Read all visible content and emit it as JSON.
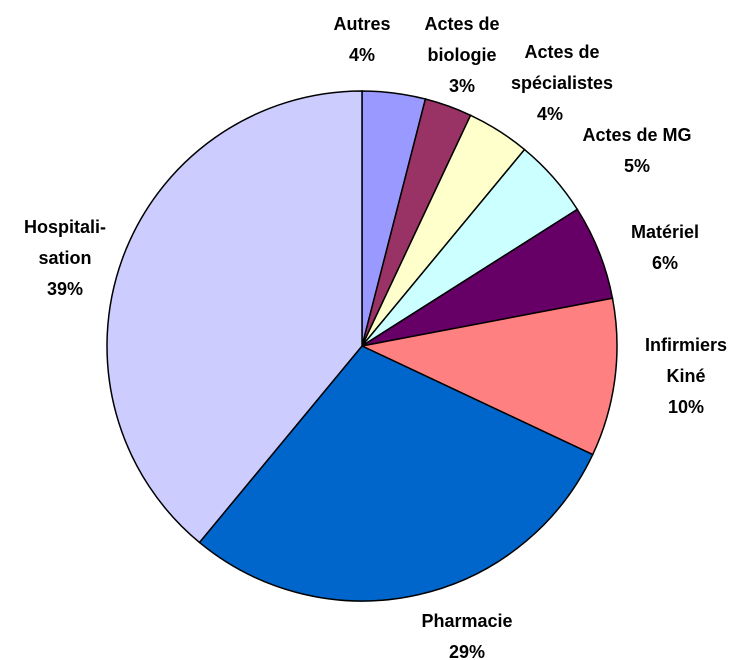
{
  "chart_data": {
    "type": "pie",
    "categories": [
      "Autres",
      "Actes de\nbiologie",
      "Actes de\nspécialistes",
      "Actes de MG",
      "Matériel",
      "Infirmiers\nKiné",
      "Pharmacie",
      "Hospitali-\nsation"
    ],
    "values": [
      4,
      3,
      4,
      5,
      6,
      10,
      29,
      39
    ],
    "value_labels": [
      "4%",
      "3%",
      "4%",
      "5%",
      "6%",
      "10%",
      "29%",
      "39%"
    ],
    "colors": [
      "#9999ff",
      "#993366",
      "#ffffcc",
      "#ccffff",
      "#660066",
      "#ff8080",
      "#0066cc",
      "#ccccff"
    ]
  }
}
